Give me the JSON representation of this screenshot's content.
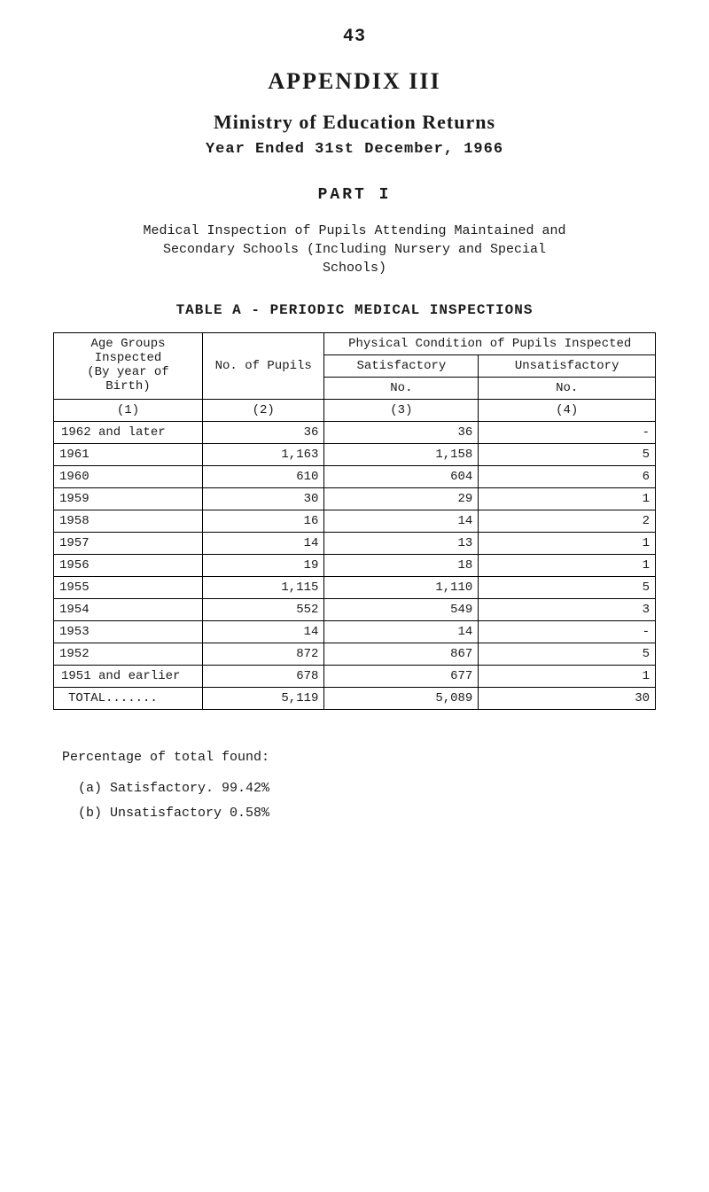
{
  "page_number": "43",
  "heading_main": "APPENDIX III",
  "heading_sub": "Ministry of Education Returns",
  "year_line": "Year Ended 31st December, 1966",
  "part_heading": "PART I",
  "intro_line1": "Medical Inspection of Pupils Attending Maintained and",
  "intro_line2": "Secondary Schools (Including Nursery and Special",
  "intro_line3": "Schools)",
  "table_title": "TABLE A - PERIODIC MEDICAL INSPECTIONS",
  "table": {
    "header": {
      "age_groups_line1": "Age Groups",
      "age_groups_line2": "Inspected",
      "age_groups_line3": "(By year of",
      "age_groups_line4": "Birth)",
      "no_pupils": "No. of Pupils",
      "phys_cond": "Physical Condition of Pupils Inspected",
      "satisfactory": "Satisfactory",
      "unsatisfactory": "Unsatisfactory",
      "no_label": "No.",
      "col1": "(1)",
      "col2": "(2)",
      "col3": "(3)",
      "col4": "(4)"
    },
    "rows": [
      {
        "label": "1962 and later",
        "pupils": "36",
        "sat": "36",
        "unsat": "-"
      },
      {
        "label": "1961",
        "pupils": "1,163",
        "sat": "1,158",
        "unsat": "5"
      },
      {
        "label": "1960",
        "pupils": "610",
        "sat": "604",
        "unsat": "6"
      },
      {
        "label": "1959",
        "pupils": "30",
        "sat": "29",
        "unsat": "1"
      },
      {
        "label": "1958",
        "pupils": "16",
        "sat": "14",
        "unsat": "2"
      },
      {
        "label": "1957",
        "pupils": "14",
        "sat": "13",
        "unsat": "1"
      },
      {
        "label": "1956",
        "pupils": "19",
        "sat": "18",
        "unsat": "1"
      },
      {
        "label": "1955",
        "pupils": "1,115",
        "sat": "1,110",
        "unsat": "5"
      },
      {
        "label": "1954",
        "pupils": "552",
        "sat": "549",
        "unsat": "3"
      },
      {
        "label": "1953",
        "pupils": "14",
        "sat": "14",
        "unsat": "-"
      },
      {
        "label": "1952",
        "pupils": "872",
        "sat": "867",
        "unsat": "5"
      },
      {
        "label": "1951 and earlier",
        "pupils": "678",
        "sat": "677",
        "unsat": "1"
      }
    ],
    "totals": {
      "label": "TOTAL.......",
      "pupils": "5,119",
      "sat": "5,089",
      "unsat": "30"
    }
  },
  "footer": {
    "heading": "Percentage of total found:",
    "a": "(a) Satisfactory.    99.42%",
    "b": "(b) Unsatisfactory   0.58%"
  }
}
